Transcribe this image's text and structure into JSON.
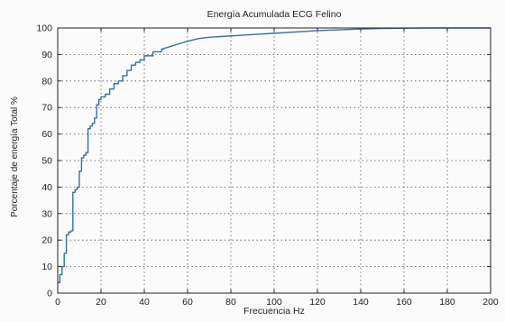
{
  "chart_data": {
    "type": "line",
    "title": "Energía Acumulada ECG Felino",
    "xlabel": "Frecuencia Hz",
    "ylabel": "Porcentaje de energía Total %",
    "xlim": [
      0,
      200
    ],
    "ylim": [
      0,
      100
    ],
    "xticks": [
      0,
      20,
      40,
      60,
      80,
      100,
      120,
      140,
      160,
      180,
      200
    ],
    "yticks": [
      0,
      10,
      20,
      30,
      40,
      50,
      60,
      70,
      80,
      90,
      100
    ],
    "grid": true,
    "legend": "none",
    "series_color": "#3a6ea5",
    "series": [
      {
        "x": [
          0,
          1,
          1,
          2,
          2,
          3,
          3,
          4,
          4,
          5,
          5,
          6,
          6,
          7,
          7,
          8,
          8,
          9,
          9,
          10,
          10,
          11,
          11,
          12,
          12,
          13,
          13,
          14,
          14,
          15,
          15,
          16,
          16,
          17,
          17,
          18,
          18,
          19,
          19,
          20,
          20,
          22,
          22,
          24,
          24,
          26,
          26,
          28,
          28,
          30,
          30,
          32,
          32,
          34,
          34,
          36,
          36,
          38,
          38,
          40,
          40,
          44,
          44,
          48,
          48,
          52,
          56,
          60,
          65,
          70,
          80,
          90,
          100,
          110,
          120,
          130,
          140,
          150,
          160,
          170,
          180,
          190,
          200
        ],
        "y": [
          4,
          4,
          7,
          7,
          10,
          10,
          15,
          15,
          22,
          22,
          23,
          23,
          23.5,
          23.5,
          38,
          38,
          39,
          39,
          40,
          40,
          46,
          46,
          51,
          51,
          52,
          52,
          53,
          53,
          62,
          62,
          63,
          63,
          64,
          64,
          66,
          66,
          71,
          71,
          73,
          73,
          74,
          74,
          75,
          75,
          77,
          77,
          79,
          79,
          80,
          80,
          82,
          82,
          84,
          84,
          86,
          86,
          87,
          87,
          88,
          88,
          89.5,
          89.5,
          91,
          91,
          92,
          93,
          94,
          95,
          96,
          96.5,
          97,
          97.5,
          98,
          98.5,
          99,
          99.3,
          99.6,
          99.8,
          99.9,
          100,
          100,
          100,
          100
        ]
      }
    ]
  }
}
